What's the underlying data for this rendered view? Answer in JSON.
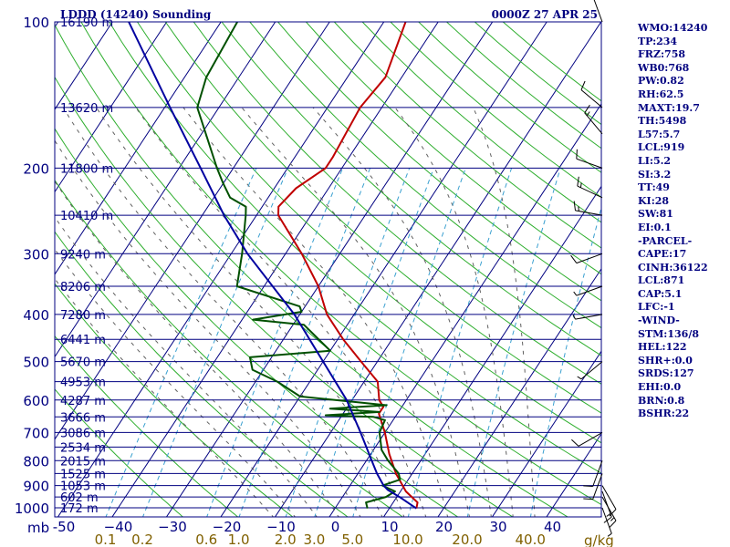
{
  "header": {
    "title": "LDDD (14240) Sounding",
    "datetime": "0000Z 27 APR 25"
  },
  "chart_data": {
    "type": "line",
    "title": "LDDD (14240) Sounding",
    "chart_kind": "skew-T log-P",
    "pressure_unit": "mb",
    "mixing_ratio_unit": "g/kg",
    "pressure_levels": [
      100,
      200,
      300,
      400,
      500,
      600,
      700,
      800,
      900,
      1000
    ],
    "pressure_tick_labels": [
      "100",
      "200",
      "300",
      "400",
      "500",
      "600",
      "700",
      "800",
      "900",
      "1000"
    ],
    "plim_mb": [
      100,
      1050
    ],
    "temperature_ticks_c": [
      -50,
      -40,
      -30,
      -20,
      -10,
      0,
      10,
      20,
      30,
      40
    ],
    "temperature_tick_labels": [
      "-50",
      "−40",
      "−30",
      "−20",
      "−10",
      "0",
      "10",
      "20",
      "30",
      "40"
    ],
    "mixing_ratio_lines": [
      {
        "label": "0.1",
        "value": 0.1
      },
      {
        "label": "0.2",
        "value": 0.2
      },
      {
        "label": "0.6",
        "value": 0.6
      },
      {
        "label": "1.0",
        "value": 1.0
      },
      {
        "label": "2.0",
        "value": 2.0
      },
      {
        "label": "3.0",
        "value": 3.0
      },
      {
        "label": "5.0",
        "value": 5.0
      },
      {
        "label": "10.0",
        "value": 10.0
      },
      {
        "label": "20.0",
        "value": 20.0
      },
      {
        "label": "40.0",
        "value": 40.0
      }
    ],
    "height_labels": [
      {
        "text": "16190 m",
        "p": 100
      },
      {
        "text": "13620 m",
        "p": 150
      },
      {
        "text": "11800 m",
        "p": 200
      },
      {
        "text": "10410 m",
        "p": 250
      },
      {
        "text": "9240 m",
        "p": 300
      },
      {
        "text": "8206 m",
        "p": 350
      },
      {
        "text": "7280 m",
        "p": 400
      },
      {
        "text": "6441 m",
        "p": 450
      },
      {
        "text": "5670 m",
        "p": 500
      },
      {
        "text": "4953 m",
        "p": 550
      },
      {
        "text": "4287 m",
        "p": 600
      },
      {
        "text": "3666 m",
        "p": 650
      },
      {
        "text": "3086 m",
        "p": 700
      },
      {
        "text": "2534 m",
        "p": 750
      },
      {
        "text": "2015 m",
        "p": 800
      },
      {
        "text": "1525 m",
        "p": 850
      },
      {
        "text": "1053 m",
        "p": 900
      },
      {
        "text": "602 m",
        "p": 950
      },
      {
        "text": "172 m",
        "p": 1000
      }
    ],
    "series": [
      {
        "role": "temperature",
        "color": "#c00000",
        "points": [
          {
            "p": 1003,
            "t": 15.0
          },
          {
            "p": 975,
            "t": 14.5
          },
          {
            "p": 925,
            "t": 11.0
          },
          {
            "p": 850,
            "t": 7.0
          },
          {
            "p": 775,
            "t": 3.4
          },
          {
            "p": 700,
            "t": 0.0
          },
          {
            "p": 640,
            "t": -3.4
          },
          {
            "p": 620,
            "t": -3.4
          },
          {
            "p": 600,
            "t": -5.0
          },
          {
            "p": 550,
            "t": -7.5
          },
          {
            "p": 500,
            "t": -13.0
          },
          {
            "p": 450,
            "t": -19.0
          },
          {
            "p": 400,
            "t": -25.0
          },
          {
            "p": 350,
            "t": -30.0
          },
          {
            "p": 300,
            "t": -37.0
          },
          {
            "p": 250,
            "t": -46.0
          },
          {
            "p": 240,
            "t": -47.0
          },
          {
            "p": 220,
            "t": -46.0
          },
          {
            "p": 200,
            "t": -43.0
          },
          {
            "p": 190,
            "t": -43.0
          },
          {
            "p": 150,
            "t": -44.0
          },
          {
            "p": 130,
            "t": -43.0
          },
          {
            "p": 100,
            "t": -46.0
          }
        ]
      },
      {
        "role": "dewpoint",
        "color": "#005000",
        "points": [
          {
            "p": 1003,
            "t": 6.0
          },
          {
            "p": 975,
            "t": 5.0
          },
          {
            "p": 950,
            "t": 8.0
          },
          {
            "p": 925,
            "t": 9.0
          },
          {
            "p": 900,
            "t": 6.0
          },
          {
            "p": 875,
            "t": 8.5
          },
          {
            "p": 850,
            "t": 7.5
          },
          {
            "p": 800,
            "t": 4.0
          },
          {
            "p": 760,
            "t": 1.5
          },
          {
            "p": 700,
            "t": -1.0
          },
          {
            "p": 660,
            "t": -1.5
          },
          {
            "p": 650,
            "t": -4.0
          },
          {
            "p": 645,
            "t": -13.0
          },
          {
            "p": 635,
            "t": -3.5
          },
          {
            "p": 625,
            "t": -13.0
          },
          {
            "p": 615,
            "t": -3.0
          },
          {
            "p": 590,
            "t": -20.0
          },
          {
            "p": 550,
            "t": -26.0
          },
          {
            "p": 520,
            "t": -32.0
          },
          {
            "p": 490,
            "t": -34.0
          },
          {
            "p": 475,
            "t": -20.0
          },
          {
            "p": 420,
            "t": -28.0
          },
          {
            "p": 410,
            "t": -38.0
          },
          {
            "p": 395,
            "t": -30.0
          },
          {
            "p": 385,
            "t": -31.0
          },
          {
            "p": 350,
            "t": -45.0
          },
          {
            "p": 300,
            "t": -48.0
          },
          {
            "p": 250,
            "t": -52.0
          },
          {
            "p": 240,
            "t": -53.0
          },
          {
            "p": 230,
            "t": -57.0
          },
          {
            "p": 215,
            "t": -60.0
          },
          {
            "p": 200,
            "t": -63.0
          },
          {
            "p": 150,
            "t": -74.0
          },
          {
            "p": 130,
            "t": -76.0
          },
          {
            "p": 100,
            "t": -77.0
          }
        ]
      },
      {
        "role": "parcel",
        "color": "#0000a0",
        "points": [
          {
            "p": 1003,
            "t": 15.0
          },
          {
            "p": 950,
            "t": 10.5
          },
          {
            "p": 919,
            "t": 7.5
          },
          {
            "p": 900,
            "t": 6.2
          },
          {
            "p": 850,
            "t": 3.5
          },
          {
            "p": 800,
            "t": 1.0
          },
          {
            "p": 700,
            "t": -4.5
          },
          {
            "p": 600,
            "t": -11.0
          },
          {
            "p": 500,
            "t": -20.0
          },
          {
            "p": 400,
            "t": -31.0
          },
          {
            "p": 300,
            "t": -47.0
          },
          {
            "p": 250,
            "t": -56.0
          },
          {
            "p": 200,
            "t": -66.0
          },
          {
            "p": 150,
            "t": -79.0
          },
          {
            "p": 100,
            "t": -97.0
          }
        ]
      }
    ],
    "wind_barbs": [
      {
        "p": 100,
        "dir": 340,
        "kt": 10
      },
      {
        "p": 150,
        "dir": 310,
        "kt": 10
      },
      {
        "p": 170,
        "dir": 320,
        "kt": 15
      },
      {
        "p": 200,
        "dir": 290,
        "kt": 10
      },
      {
        "p": 230,
        "dir": 295,
        "kt": 15
      },
      {
        "p": 250,
        "dir": 280,
        "kt": 15
      },
      {
        "p": 300,
        "dir": 250,
        "kt": 10
      },
      {
        "p": 350,
        "dir": 250,
        "kt": 5
      },
      {
        "p": 400,
        "dir": 260,
        "kt": 5
      },
      {
        "p": 500,
        "dir": 230,
        "kt": 5
      },
      {
        "p": 700,
        "dir": 240,
        "kt": 10
      },
      {
        "p": 800,
        "dir": 200,
        "kt": 10
      },
      {
        "p": 850,
        "dir": 200,
        "kt": 10
      },
      {
        "p": 900,
        "dir": 150,
        "kt": 10
      },
      {
        "p": 925,
        "dir": 160,
        "kt": 15
      },
      {
        "p": 950,
        "dir": 150,
        "kt": 15
      },
      {
        "p": 1000,
        "dir": 160,
        "kt": 5
      }
    ]
  },
  "indices": [
    "WMO:14240",
    "TP:234",
    "FRZ:758",
    "WB0:768",
    "PW:0.82",
    "RH:62.5",
    "MAXT:19.7",
    "TH:5498",
    "L57:5.7",
    "LCL:919",
    "LI:5.2",
    "SI:3.2",
    "TT:49",
    "KI:28",
    "SW:81",
    "EI:0.1",
    "-PARCEL-",
    "CAPE:17",
    "CINH:36122",
    "LCL:871",
    "CAP:5.1",
    "LFC:-1",
    "-WIND-",
    "STM:136/8",
    "HEL:122",
    "SHR+:0.0",
    "SRDS:127",
    "EHI:0.0",
    "BRN:0.8",
    "BSHR:22"
  ],
  "colors": {
    "isobar": "#000080",
    "isotherm": "#000080",
    "dry_adiabat": "#2eae2e",
    "moist_adiabat": "#606060",
    "mixing_ratio": "#3aa0d0",
    "text": "#000080"
  }
}
